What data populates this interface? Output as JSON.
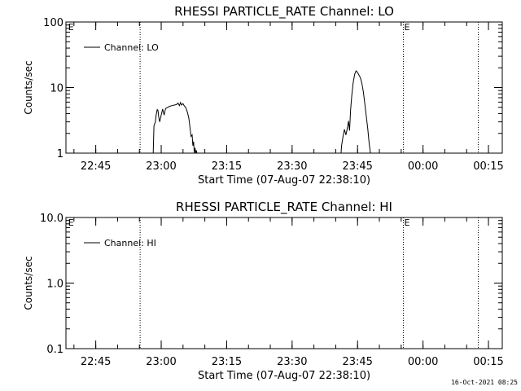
{
  "chart_data": [
    {
      "type": "line",
      "title": "RHESSI PARTICLE_RATE Channel: LO",
      "xlabel": "Start Time (07-Aug-07 22:38:10)",
      "ylabel": "Counts/sec",
      "yscale": "log",
      "xlim": [
        "22:38:10",
        "00:18:10"
      ],
      "ylim": [
        1,
        100
      ],
      "x_ticks": [
        "22:45",
        "23:00",
        "23:15",
        "23:30",
        "23:45",
        "00:00",
        "00:15"
      ],
      "y_ticks": [
        "1",
        "10",
        "100"
      ],
      "legend": {
        "placement": "top-left",
        "entries": [
          "Channel: LO"
        ]
      },
      "markers": [
        {
          "label": "E",
          "time": "22:38:30"
        },
        {
          "label": "",
          "time": "22:55:10"
        },
        {
          "label": "E",
          "time": "23:55:30"
        },
        {
          "label": "",
          "time": "00:12:40"
        }
      ],
      "series": [
        {
          "name": "Channel: LO",
          "points": [
            [
              "22:58:10",
              1.0
            ],
            [
              "22:58:20",
              2.6
            ],
            [
              "22:58:40",
              3.0
            ],
            [
              "22:58:50",
              3.8
            ],
            [
              "22:59:05",
              4.6
            ],
            [
              "22:59:15",
              4.5
            ],
            [
              "22:59:25",
              3.6
            ],
            [
              "22:59:40",
              3.0
            ],
            [
              "23:00:00",
              3.8
            ],
            [
              "23:00:20",
              4.7
            ],
            [
              "23:00:40",
              3.8
            ],
            [
              "23:01:00",
              4.8
            ],
            [
              "23:01:30",
              5.0
            ],
            [
              "23:02:00",
              5.2
            ],
            [
              "23:02:30",
              5.3
            ],
            [
              "23:03:00",
              5.4
            ],
            [
              "23:03:30",
              5.5
            ],
            [
              "23:03:50",
              5.8
            ],
            [
              "23:04:10",
              5.3
            ],
            [
              "23:04:25",
              5.9
            ],
            [
              "23:04:40",
              5.4
            ],
            [
              "23:05:00",
              5.7
            ],
            [
              "23:05:15",
              5.3
            ],
            [
              "23:05:40",
              4.9
            ],
            [
              "23:06:00",
              4.2
            ],
            [
              "23:06:20",
              3.4
            ],
            [
              "23:06:35",
              2.5
            ],
            [
              "23:06:50",
              1.8
            ],
            [
              "23:07:05",
              1.9
            ],
            [
              "23:07:15",
              1.3
            ],
            [
              "23:07:25",
              1.5
            ],
            [
              "23:07:35",
              1.0
            ],
            [
              "23:07:45",
              1.2
            ],
            [
              "23:07:55",
              1.0
            ],
            [
              "23:08:05",
              1.1
            ],
            [
              "23:08:15",
              0.9
            ],
            [
              "23:41:10",
              0.9
            ],
            [
              "23:41:20",
              1.3
            ],
            [
              "23:41:40",
              1.8
            ],
            [
              "23:42:00",
              2.3
            ],
            [
              "23:42:20",
              1.9
            ],
            [
              "23:42:40",
              2.4
            ],
            [
              "23:42:55",
              3.1
            ],
            [
              "23:43:10",
              2.2
            ],
            [
              "23:43:25",
              4.6
            ],
            [
              "23:43:40",
              7.5
            ],
            [
              "23:44:00",
              12.0
            ],
            [
              "23:44:20",
              16.0
            ],
            [
              "23:44:40",
              18.0
            ],
            [
              "23:45:00",
              17.0
            ],
            [
              "23:45:20",
              15.5
            ],
            [
              "23:45:40",
              14.0
            ],
            [
              "23:46:00",
              11.5
            ],
            [
              "23:46:20",
              8.5
            ],
            [
              "23:46:40",
              5.6
            ],
            [
              "23:47:00",
              3.7
            ],
            [
              "23:47:20",
              2.4
            ],
            [
              "23:47:40",
              1.4
            ],
            [
              "23:48:00",
              0.95
            ]
          ]
        }
      ]
    },
    {
      "type": "line",
      "title": "RHESSI PARTICLE_RATE Channel: HI",
      "xlabel": "Start Time (07-Aug-07 22:38:10)",
      "ylabel": "Counts/sec",
      "yscale": "log",
      "xlim": [
        "22:38:10",
        "00:18:10"
      ],
      "ylim": [
        0.1,
        10
      ],
      "x_ticks": [
        "22:45",
        "23:00",
        "23:15",
        "23:30",
        "23:45",
        "00:00",
        "00:15"
      ],
      "y_ticks": [
        "0.1",
        "1.0",
        "10.0"
      ],
      "legend": {
        "placement": "top-left",
        "entries": [
          "Channel: HI"
        ]
      },
      "markers": [
        {
          "label": "E",
          "time": "22:38:30"
        },
        {
          "label": "",
          "time": "22:55:10"
        },
        {
          "label": "E",
          "time": "23:55:30"
        },
        {
          "label": "",
          "time": "00:12:40"
        }
      ],
      "series": [
        {
          "name": "Channel: HI",
          "points": []
        }
      ]
    }
  ],
  "footer": {
    "timestamp": "16-Oct-2021 08:25"
  }
}
